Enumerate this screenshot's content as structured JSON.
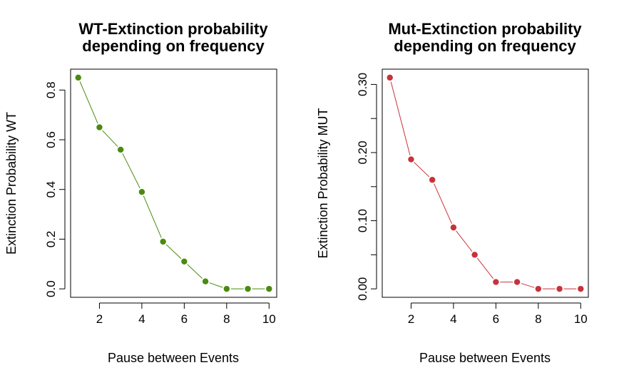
{
  "chart_data": [
    {
      "type": "line",
      "title_lines": [
        "WT-Extinction probability",
        "depending on frequency"
      ],
      "xlabel": "Pause between Events",
      "ylabel": "Extinction Probability WT",
      "x": [
        1,
        2,
        3,
        4,
        5,
        6,
        7,
        8,
        9,
        10
      ],
      "values": [
        0.85,
        0.65,
        0.56,
        0.39,
        0.19,
        0.11,
        0.03,
        0.0,
        0.0,
        0.0
      ],
      "xticks": [
        2,
        4,
        6,
        8,
        10
      ],
      "xtick_labels": [
        "2",
        "4",
        "6",
        "8",
        "10"
      ],
      "yticks": [
        0,
        0.2,
        0.4,
        0.6,
        0.8
      ],
      "ytick_labels": [
        "0.0",
        "0.2",
        "0.4",
        "0.6",
        "0.8"
      ],
      "xlim": [
        0.64,
        10.36
      ],
      "ylim": [
        -0.034,
        0.884
      ],
      "color": "#4a8a0f",
      "grid": false
    },
    {
      "type": "line",
      "title_lines": [
        "Mut-Extinction probability",
        "depending on frequency"
      ],
      "xlabel": "Pause between Events",
      "ylabel": "Extinction Probability MUT",
      "x": [
        1,
        2,
        3,
        4,
        5,
        6,
        7,
        8,
        9,
        10
      ],
      "values": [
        0.31,
        0.19,
        0.16,
        0.09,
        0.05,
        0.01,
        0.01,
        0.0,
        0.0,
        0.0
      ],
      "xticks": [
        2,
        4,
        6,
        8,
        10
      ],
      "xtick_labels": [
        "2",
        "4",
        "6",
        "8",
        "10"
      ],
      "yticks": [
        0,
        0.05,
        0.1,
        0.15,
        0.2,
        0.25,
        0.3
      ],
      "ytick_labels": [
        "0.00",
        "",
        "0.10",
        "",
        "0.20",
        "",
        "0.30"
      ],
      "xlim": [
        0.64,
        10.36
      ],
      "ylim": [
        -0.0124,
        0.3224
      ],
      "color": "#c8323a",
      "grid": false
    }
  ]
}
